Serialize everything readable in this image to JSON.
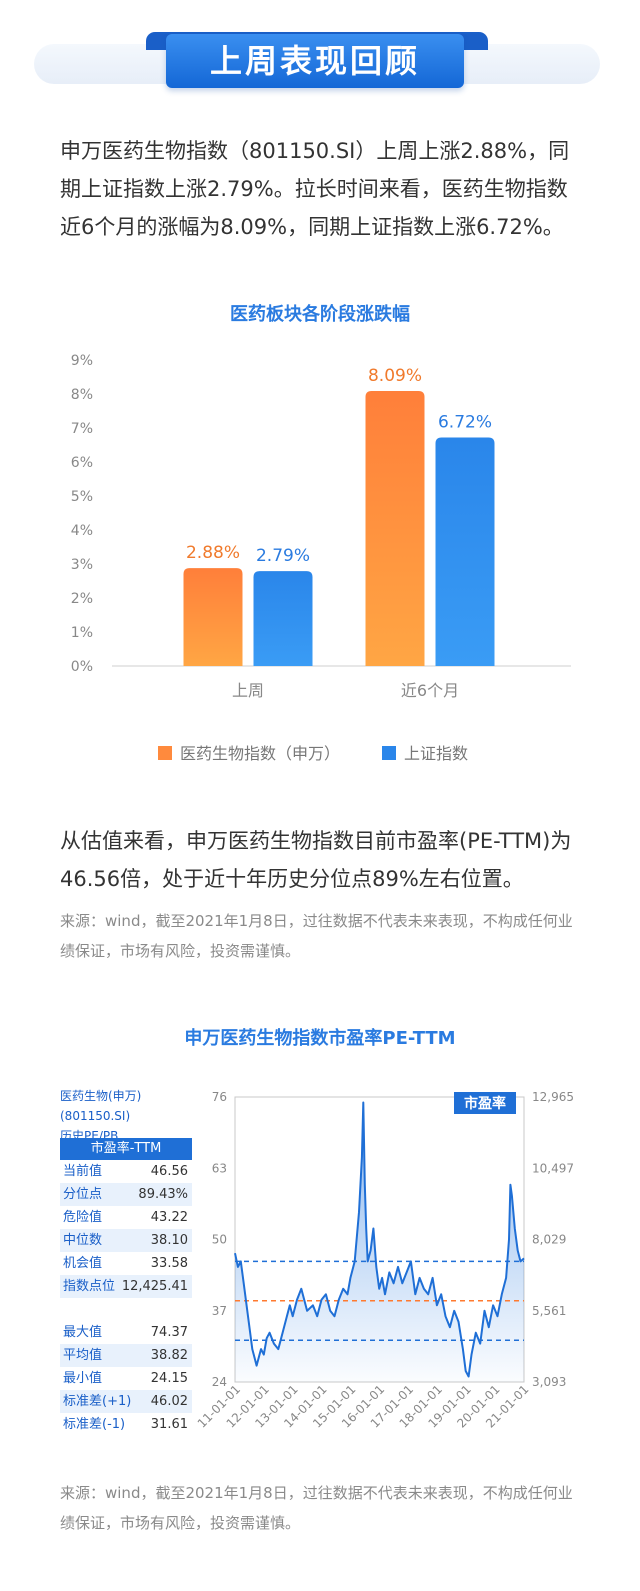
{
  "header": {
    "title": "上周表现回顾"
  },
  "intro": "申万医药生物指数（801150.SI）上周上涨2.88%，同期上证指数上涨2.79%。拉长时间来看，医药生物指数近6个月的涨幅为8.09%，同期上证指数上涨6.72%。",
  "chart1": {
    "title": "医药板块各阶段涨跌幅",
    "yticks": [
      "0%",
      "1%",
      "2%",
      "3%",
      "4%",
      "5%",
      "6%",
      "7%",
      "8%",
      "9%"
    ]
  },
  "chart_data": [
    {
      "type": "bar",
      "title": "医药板块各阶段涨跌幅",
      "categories": [
        "上周",
        "近6个月"
      ],
      "series": [
        {
          "name": "医药生物指数（申万）",
          "values": [
            2.88,
            8.09
          ],
          "labels": [
            "2.88%",
            "8.09%"
          ],
          "color": "#ff8a3d"
        },
        {
          "name": "上证指数",
          "values": [
            2.79,
            6.72
          ],
          "labels": [
            "2.79%",
            "6.72%"
          ],
          "color": "#2a86ea"
        }
      ],
      "ylim": [
        0,
        9
      ],
      "unit": "%",
      "legend": "bottom"
    },
    {
      "type": "line",
      "title": "申万医药生物指数市盈率PE-TTM",
      "series_name": "市盈率",
      "x_ticks": [
        "11-01-01",
        "12-01-01",
        "13-01-01",
        "14-01-01",
        "15-01-01",
        "16-01-01",
        "17-01-01",
        "18-01-01",
        "19-01-01",
        "20-01-01",
        "21-01-01"
      ],
      "y_left_ticks": [
        "76",
        "63",
        "50",
        "37",
        "24"
      ],
      "y_right_ticks": [
        "12,965",
        "10,497",
        "8,029",
        "5,561",
        "3,093"
      ],
      "ylim": [
        24,
        76
      ],
      "reference_lines": [
        {
          "name": "标准差(+1)",
          "value": 46.02,
          "color": "#1f6fd6"
        },
        {
          "name": "平均值",
          "value": 38.82,
          "color": "#ff7a2f"
        },
        {
          "name": "标准差(-1)",
          "value": 31.61,
          "color": "#1f6fd6"
        }
      ],
      "x": [
        2011.0,
        2011.1,
        2011.2,
        2011.3,
        2011.45,
        2011.6,
        2011.75,
        2011.9,
        2012.0,
        2012.1,
        2012.2,
        2012.35,
        2012.5,
        2012.65,
        2012.8,
        2012.9,
        2013.0,
        2013.15,
        2013.3,
        2013.5,
        2013.7,
        2013.85,
        2014.0,
        2014.15,
        2014.3,
        2014.45,
        2014.6,
        2014.75,
        2014.9,
        2015.0,
        2015.15,
        2015.3,
        2015.4,
        2015.45,
        2015.5,
        2015.55,
        2015.6,
        2015.7,
        2015.8,
        2015.9,
        2016.0,
        2016.1,
        2016.2,
        2016.35,
        2016.5,
        2016.65,
        2016.8,
        2016.95,
        2017.1,
        2017.25,
        2017.4,
        2017.55,
        2017.7,
        2017.85,
        2018.0,
        2018.15,
        2018.3,
        2018.45,
        2018.6,
        2018.75,
        2018.9,
        2019.0,
        2019.1,
        2019.2,
        2019.35,
        2019.5,
        2019.65,
        2019.8,
        2019.95,
        2020.1,
        2020.25,
        2020.4,
        2020.5,
        2020.55,
        2020.6,
        2020.7,
        2020.8,
        2020.9,
        2021.02
      ],
      "y": [
        47.5,
        45,
        46,
        42,
        36,
        30,
        27,
        30,
        29,
        32,
        33,
        31,
        30,
        33,
        36,
        38,
        36,
        39,
        41,
        37,
        38,
        36,
        39,
        40,
        37,
        36,
        39,
        41,
        40,
        43,
        46,
        55,
        65,
        75,
        60,
        52,
        46,
        48,
        52,
        45,
        41,
        43,
        40,
        44,
        42,
        45,
        42,
        44,
        46,
        40,
        43,
        41,
        40,
        43,
        38,
        40,
        36,
        34,
        37,
        35,
        30,
        26,
        25,
        29,
        33,
        31,
        37,
        34,
        38,
        36,
        40,
        43,
        50,
        60,
        58,
        52,
        48,
        46,
        46.56
      ]
    }
  ],
  "valuation": "从估值来看，申万医药生物指数目前市盈率(PE-TTM)为46.56倍，处于近十年历史分位点89%左右位置。",
  "source_note": "来源：wind，截至2021年1月8日，过往数据不代表未来表现，不构成任何业绩保证，市场有风险，投资需谨慎。",
  "chart2": {
    "title": "申万医药生物指数市盈率PE-TTM",
    "series_badge": "市盈率",
    "table_head_line1": "医药生物(申万) (801150.SI)",
    "table_head_line2": "历史PE/PB",
    "table_title": "市盈率-TTM",
    "rows_a": [
      {
        "k": "当前值",
        "v": "46.56"
      },
      {
        "k": "分位点",
        "v": "89.43%"
      },
      {
        "k": "危险值",
        "v": "43.22"
      },
      {
        "k": "中位数",
        "v": "38.10"
      },
      {
        "k": "机会值",
        "v": "33.58"
      },
      {
        "k": "指数点位",
        "v": "12,425.41"
      }
    ],
    "rows_b": [
      {
        "k": "最大值",
        "v": "74.37"
      },
      {
        "k": "平均值",
        "v": "38.82"
      },
      {
        "k": "最小值",
        "v": "24.15"
      },
      {
        "k": "标准差(+1)",
        "v": "46.02"
      },
      {
        "k": "标准差(-1)",
        "v": "31.61"
      }
    ]
  },
  "source_note2": "来源：wind，截至2021年1月8日，过往数据不代表未来表现，不构成任何业绩保证，市场有风险，投资需谨慎。"
}
